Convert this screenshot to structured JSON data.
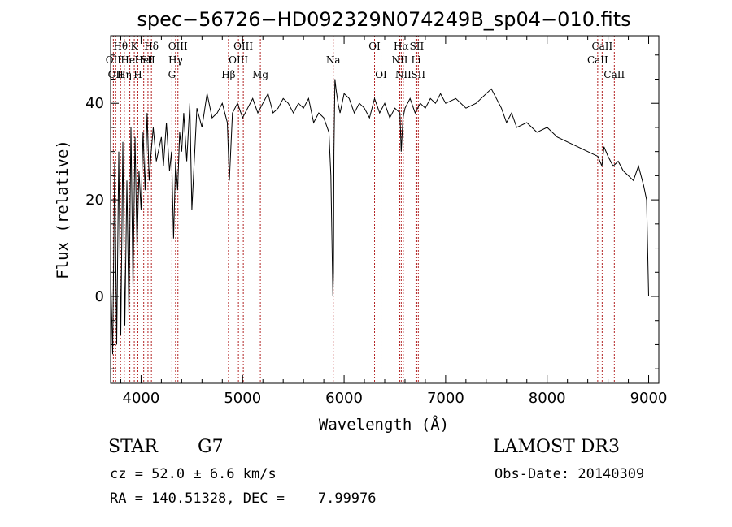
{
  "chart_data": {
    "type": "line",
    "title": "spec−56726−HD092329N074249B_sp04−010.fits",
    "xlabel": "Wavelength (Å)",
    "ylabel": "Flux (relative)",
    "xlim": [
      3700,
      9100
    ],
    "ylim": [
      -18,
      54
    ],
    "xticks": [
      4000,
      5000,
      6000,
      7000,
      8000,
      9000
    ],
    "xtick_labels": [
      "4000",
      "5000",
      "6000",
      "7000",
      "8000",
      "9000"
    ],
    "yticks": [
      0,
      20,
      40
    ],
    "ytick_labels": [
      "0",
      "20",
      "40"
    ],
    "series": [
      {
        "x": [
          3700,
          3720,
          3740,
          3760,
          3780,
          3800,
          3820,
          3840,
          3860,
          3880,
          3900,
          3920,
          3940,
          3960,
          3980,
          4000,
          4020,
          4040,
          4060,
          4080,
          4100,
          4120,
          4150,
          4180,
          4200,
          4220,
          4250,
          4280,
          4300,
          4320,
          4340,
          4360,
          4380,
          4400,
          4420,
          4450,
          4480,
          4500,
          4550,
          4600,
          4650,
          4700,
          4750,
          4800,
          4850,
          4870,
          4900,
          4950,
          5000,
          5050,
          5100,
          5150,
          5200,
          5250,
          5300,
          5350,
          5400,
          5450,
          5500,
          5550,
          5600,
          5650,
          5700,
          5750,
          5800,
          5850,
          5870,
          5880,
          5890,
          5895,
          5900,
          5910,
          5920,
          5940,
          5960,
          6000,
          6050,
          6100,
          6150,
          6200,
          6250,
          6300,
          6350,
          6400,
          6450,
          6500,
          6550,
          6563,
          6580,
          6600,
          6650,
          6700,
          6750,
          6800,
          6850,
          6900,
          6950,
          7000,
          7100,
          7200,
          7300,
          7400,
          7450,
          7500,
          7550,
          7600,
          7650,
          7700,
          7800,
          7900,
          8000,
          8100,
          8200,
          8300,
          8400,
          8500,
          8540,
          8560,
          8600,
          8650,
          8700,
          8750,
          8800,
          8850,
          8900,
          8950,
          8980,
          9000
        ],
        "y": [
          5,
          -12,
          28,
          -10,
          30,
          -8,
          32,
          -6,
          24,
          -4,
          35,
          2,
          33,
          10,
          26,
          18,
          34,
          22,
          38,
          24,
          30,
          35,
          28,
          31,
          33,
          27,
          36,
          26,
          30,
          12,
          28,
          22,
          34,
          30,
          38,
          28,
          40,
          18,
          39,
          35,
          42,
          37,
          38,
          40,
          36,
          24,
          38,
          40,
          37,
          39,
          41,
          38,
          40,
          42,
          38,
          39,
          41,
          40,
          38,
          40,
          39,
          41,
          36,
          38,
          37,
          34,
          25,
          12,
          0,
          5,
          30,
          45,
          43,
          40,
          38,
          42,
          41,
          38,
          40,
          39,
          37,
          41,
          38,
          40,
          37,
          39,
          38,
          30,
          37,
          39,
          41,
          38,
          40,
          39,
          41,
          40,
          42,
          40,
          41,
          39,
          40,
          42,
          43,
          41,
          39,
          36,
          38,
          35,
          36,
          34,
          35,
          33,
          32,
          31,
          30,
          29,
          27,
          31,
          29,
          27,
          28,
          26,
          25,
          24,
          27,
          23,
          20,
          0
        ]
      }
    ],
    "line_markers": [
      {
        "x": 3727,
        "label": "OII",
        "row": 2
      },
      {
        "x": 3750,
        "label": "OII",
        "row": 3
      },
      {
        "x": 3798,
        "label": "Hθ",
        "row": 1
      },
      {
        "x": 3835,
        "label": "Hη",
        "row": 3
      },
      {
        "x": 3889,
        "label": "HeI",
        "row": 2
      },
      {
        "x": 3933,
        "label": "K",
        "row": 1
      },
      {
        "x": 3968,
        "label": "H",
        "row": 3
      },
      {
        "x": 4026,
        "label": "HeI",
        "row": 2
      },
      {
        "x": 4068,
        "label": "SII",
        "row": 2
      },
      {
        "x": 4102,
        "label": "Hδ",
        "row": 1
      },
      {
        "x": 4304,
        "label": "G",
        "row": 3
      },
      {
        "x": 4340,
        "label": "Hγ",
        "row": 2
      },
      {
        "x": 4363,
        "label": "OIII",
        "row": 1
      },
      {
        "x": 4861,
        "label": "Hβ",
        "row": 3
      },
      {
        "x": 4959,
        "label": "OIII",
        "row": 2
      },
      {
        "x": 5007,
        "label": "OIII",
        "row": 1
      },
      {
        "x": 5175,
        "label": "Mg",
        "row": 3
      },
      {
        "x": 5893,
        "label": "Na",
        "row": 2
      },
      {
        "x": 6300,
        "label": "OI",
        "row": 1
      },
      {
        "x": 6364,
        "label": "OI",
        "row": 3
      },
      {
        "x": 6548,
        "label": "NII",
        "row": 2
      },
      {
        "x": 6563,
        "label": "Hα",
        "row": 1
      },
      {
        "x": 6583,
        "label": "NII",
        "row": 3
      },
      {
        "x": 6708,
        "label": "Li",
        "row": 2
      },
      {
        "x": 6716,
        "label": "SII",
        "row": 1
      },
      {
        "x": 6731,
        "label": "SII",
        "row": 3
      },
      {
        "x": 8498,
        "label": "CaII",
        "row": 2
      },
      {
        "x": 8542,
        "label": "CaII",
        "row": 1
      },
      {
        "x": 8662,
        "label": "CaII",
        "row": 3
      }
    ],
    "colors": {
      "spectrum": "#000000",
      "markers": "#b22222",
      "axes": "#000000"
    }
  },
  "info": {
    "object_type": "STAR",
    "subclass": "G7",
    "survey": "LAMOST DR3",
    "cz": "cz = 52.0 ± 6.6 km/s",
    "obs_date": "Obs-Date: 20140309",
    "coords": "RA = 140.51328, DEC =    7.99976"
  }
}
